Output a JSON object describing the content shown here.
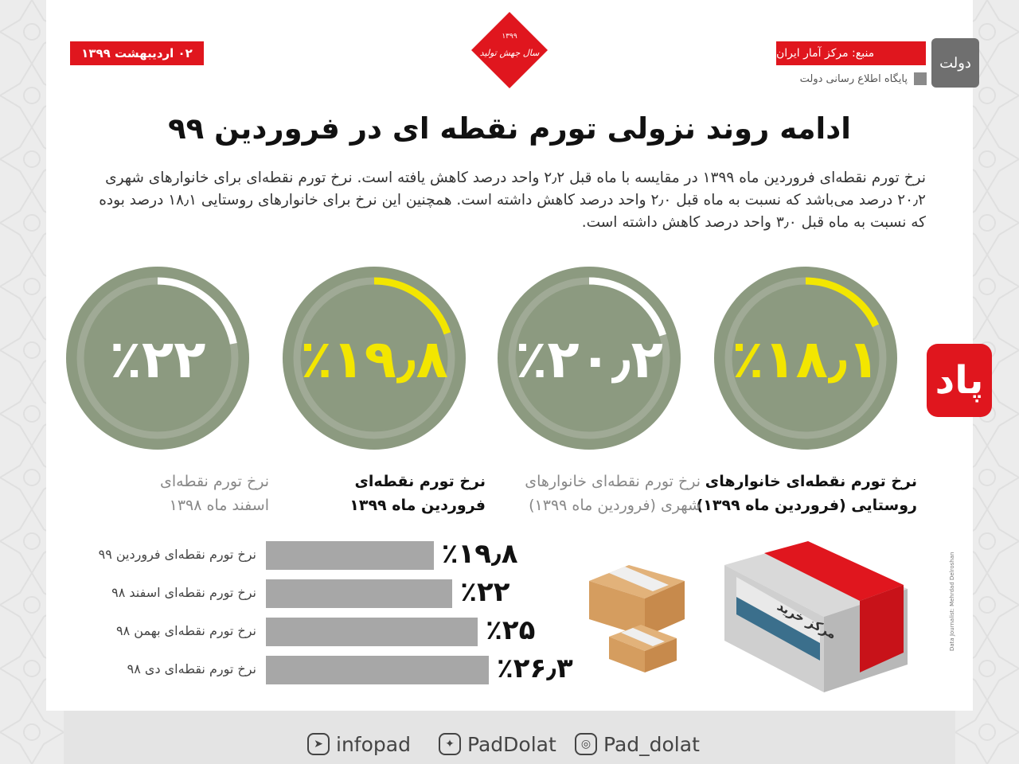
{
  "header": {
    "date": "۰۲ اردیبهشت ۱۳۹۹",
    "source": "منبع: مرکز آمار ایران",
    "portal": "پایگاه اطلاع رسانی دولت",
    "diamond_text": "سال جهش تولید",
    "diamond_year": "۱۳۹۹",
    "dolat_logo_text": "دولت"
  },
  "title": "ادامه روند نزولی تورم نقطه ای در فروردین ۹۹",
  "intro": "نرخ تورم نقطه‌ای فروردین ماه ۱۳۹۹ در مقایسه با ماه قبل ۲٫۲ واحد درصد کاهش یافته است. نرخ تورم نقطه‌ای برای خانوارهای شهری ۲۰٫۲ درصد می‌باشد که نسبت به ماه قبل ۲٫۰ واحد درصد کاهش داشته است. همچنین این نرخ برای خانوارهای روستایی ۱۸٫۱ درصد بوده که نسبت به ماه قبل ۳٫۰ واحد درصد کاهش داشته است.",
  "pad_logo": "پاد",
  "credit": "Data Journalist: Mehrdad Delroshan",
  "store_sign": "مرکز خرید",
  "social": {
    "telegram": "infopad",
    "twitter": "PadDolat",
    "instagram": "Pad_dolat"
  },
  "colors": {
    "red": "#e0161e",
    "gauge_fill": "#8c9a80",
    "gauge_ring": "#a0aa96",
    "highlight": "#f3e600",
    "white_text": "#ffffff",
    "bar": "#a7a7a7"
  },
  "chart_data": [
    {
      "type": "gauge",
      "unit": "%",
      "items": [
        {
          "value": 18.1,
          "display": "٪۱۸٫۱",
          "label_1": "نرخ تورم نقطه‌ای خانوارهای",
          "label_2": "روستایی (فروردین ماه ۱۳۹۹)",
          "highlight": true
        },
        {
          "value": 20.2,
          "display": "٪۲۰٫۲",
          "label_1": "نرخ تورم نقطه‌ای خانوارهای",
          "label_2": "شهری (فروردین ماه ۱۳۹۹)",
          "highlight": false
        },
        {
          "value": 19.8,
          "display": "٪۱۹٫۸",
          "label_1": "نرخ تورم نقطه‌ای",
          "label_2": "فروردین ماه ۱۳۹۹",
          "highlight": true
        },
        {
          "value": 22,
          "display": "٪۲۲",
          "label_1": "نرخ تورم نقطه‌ای",
          "label_2": "اسفند ماه ۱۳۹۸",
          "highlight": false
        }
      ]
    },
    {
      "type": "bar",
      "categories": [
        "نرخ تورم نقطه‌ای فروردین ۹۹",
        "نرخ تورم نقطه‌ای اسفند ۹۸",
        "نرخ تورم نقطه‌ای بهمن ۹۸",
        "نرخ تورم نقطه‌ای دی ۹۸"
      ],
      "values": [
        19.8,
        22,
        25,
        26.3
      ],
      "value_labels": [
        "٪۱۹٫۸",
        "٪۲۲",
        "٪۲۵",
        "٪۲۶٫۳"
      ]
    }
  ]
}
